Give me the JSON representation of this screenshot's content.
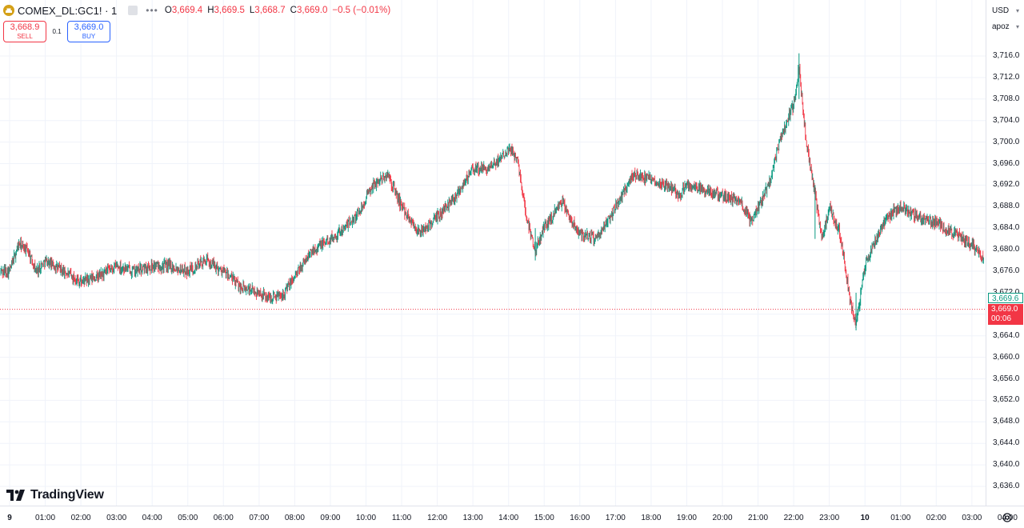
{
  "header": {
    "symbol": "COMEX_DL:GC1! · 1",
    "ohlc": [
      {
        "label": "O",
        "value": "3,669.4"
      },
      {
        "label": "H",
        "value": "3,669.5"
      },
      {
        "label": "L",
        "value": "3,668.7"
      },
      {
        "label": "C",
        "value": "3,669.0"
      }
    ],
    "change": "−0.5 (−0.01%)"
  },
  "trade": {
    "sell_price": "3,668.9",
    "sell_label": "SELL",
    "spread": "0.1",
    "buy_price": "3,669.0",
    "buy_label": "BUY"
  },
  "axis_controls": {
    "currency": "USD",
    "scale_mode": "apoz"
  },
  "price_tags": {
    "secondary": "3,669.6",
    "last": "3,669.0",
    "countdown": "00:06"
  },
  "colors": {
    "up": "#089981",
    "down": "#f23645",
    "grid": "#f0f3fa",
    "accent": "#2962ff"
  },
  "branding": "TradingView",
  "chart_data": {
    "type": "candlestick",
    "y_ticks": [
      "3,716.0",
      "3,712.0",
      "3,708.0",
      "3,704.0",
      "3,700.0",
      "3,696.0",
      "3,692.0",
      "3,688.0",
      "3,684.0",
      "3,680.0",
      "3,676.0",
      "3,672.0",
      "3,668.0",
      "3,664.0",
      "3,660.0",
      "3,656.0",
      "3,652.0",
      "3,648.0",
      "3,644.0",
      "3,640.0",
      "3,636.0"
    ],
    "ylim": [
      3633.0,
      3722.0
    ],
    "x_ticks": [
      "9",
      "01:00",
      "02:00",
      "03:00",
      "04:00",
      "05:00",
      "06:00",
      "07:00",
      "08:00",
      "09:00",
      "10:00",
      "11:00",
      "12:00",
      "13:00",
      "14:00",
      "15:00",
      "16:00",
      "17:00",
      "18:00",
      "19:00",
      "20:00",
      "21:00",
      "22:00",
      "23:00",
      "10",
      "02:00",
      "03:00",
      "04:00"
    ],
    "x_ticks_bold": [
      "9",
      "10"
    ],
    "last_price": 3669.0,
    "price_path": [
      [
        0,
        3676
      ],
      [
        0.25,
        3681
      ],
      [
        0.5,
        3680
      ],
      [
        0.75,
        3676
      ],
      [
        1,
        3678
      ],
      [
        1.5,
        3676
      ],
      [
        2,
        3674
      ],
      [
        2.5,
        3675
      ],
      [
        3,
        3677
      ],
      [
        3.5,
        3676
      ],
      [
        4,
        3677
      ],
      [
        4.5,
        3677
      ],
      [
        5,
        3676
      ],
      [
        5.5,
        3678
      ],
      [
        6,
        3676
      ],
      [
        6.5,
        3673
      ],
      [
        7,
        3672
      ],
      [
        7.3,
        3671
      ],
      [
        7.7,
        3672
      ],
      [
        8,
        3675
      ],
      [
        8.5,
        3680
      ],
      [
        9,
        3682
      ],
      [
        9.4,
        3684
      ],
      [
        9.8,
        3687
      ],
      [
        10.2,
        3692
      ],
      [
        10.6,
        3694
      ],
      [
        11,
        3688
      ],
      [
        11.5,
        3683
      ],
      [
        12,
        3686
      ],
      [
        12.5,
        3690
      ],
      [
        13,
        3695
      ],
      [
        13.5,
        3695
      ],
      [
        14,
        3699
      ],
      [
        14.25,
        3697
      ],
      [
        14.5,
        3686
      ],
      [
        14.75,
        3680
      ],
      [
        15,
        3684
      ],
      [
        15.5,
        3689
      ],
      [
        15.7,
        3686
      ],
      [
        16,
        3683
      ],
      [
        16.5,
        3682
      ],
      [
        17,
        3688
      ],
      [
        17.5,
        3694
      ],
      [
        18,
        3693
      ],
      [
        18.5,
        3692
      ],
      [
        18.8,
        3690
      ],
      [
        19,
        3692
      ],
      [
        19.5,
        3691
      ],
      [
        20,
        3690
      ],
      [
        20.5,
        3689
      ],
      [
        20.8,
        3685
      ],
      [
        21,
        3688
      ],
      [
        21.3,
        3692
      ],
      [
        21.6,
        3700
      ],
      [
        22.0,
        3707
      ],
      [
        22.15,
        3714
      ],
      [
        22.35,
        3700
      ],
      [
        22.6,
        3690
      ],
      [
        22.8,
        3682
      ],
      [
        23,
        3688
      ],
      [
        23.3,
        3683
      ],
      [
        23.6,
        3670
      ],
      [
        23.75,
        3666
      ],
      [
        24,
        3677
      ],
      [
        24.3,
        3682
      ],
      [
        24.6,
        3686
      ],
      [
        25,
        3688
      ],
      [
        25.5,
        3686
      ],
      [
        26,
        3685
      ],
      [
        26.5,
        3683
      ],
      [
        27,
        3681
      ],
      [
        27.4,
        3678
      ],
      [
        27.7,
        3675
      ],
      [
        28,
        3672
      ],
      [
        28.4,
        3670
      ],
      [
        28.8,
        3669.5
      ],
      [
        29,
        3669
      ]
    ]
  }
}
